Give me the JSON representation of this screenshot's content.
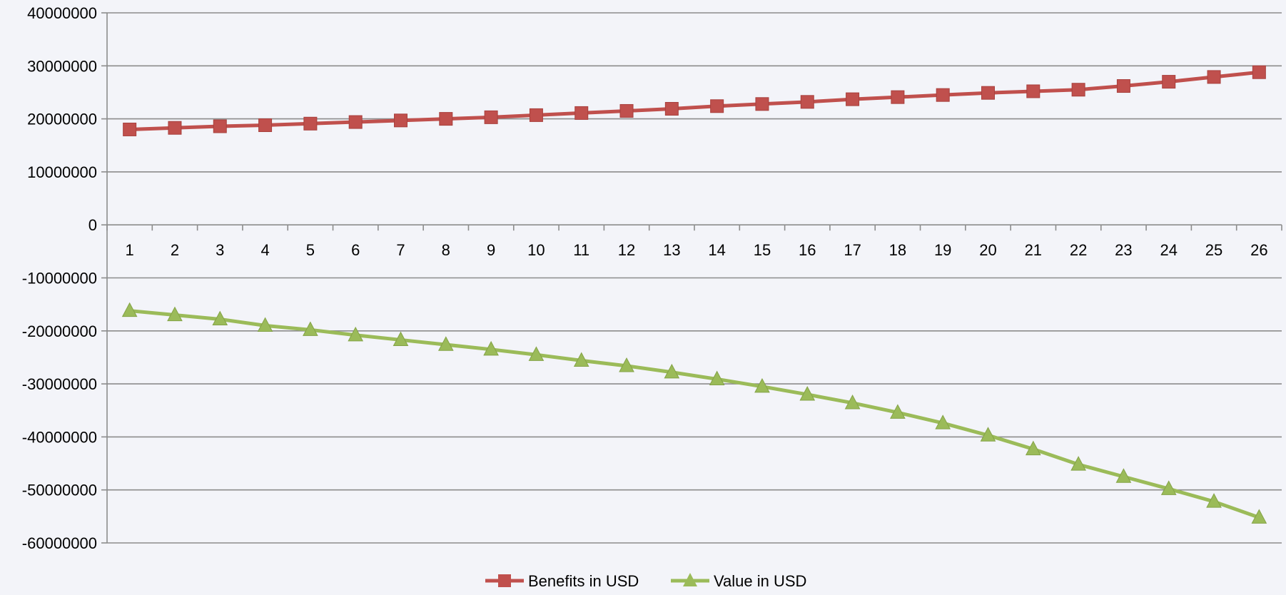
{
  "chart_data": {
    "type": "line",
    "title": "",
    "xlabel": "",
    "ylabel": "",
    "categories": [
      "1",
      "2",
      "3",
      "4",
      "5",
      "6",
      "7",
      "8",
      "9",
      "10",
      "11",
      "12",
      "13",
      "14",
      "15",
      "16",
      "17",
      "18",
      "19",
      "20",
      "21",
      "22",
      "23",
      "24",
      "25",
      "26"
    ],
    "ylim": [
      -60000000,
      40000000
    ],
    "y_ticks": [
      40000000,
      30000000,
      20000000,
      10000000,
      0,
      -10000000,
      -20000000,
      -30000000,
      -40000000,
      -50000000,
      -60000000
    ],
    "y_tick_labels": [
      "40000000",
      "30000000",
      "20000000",
      "10000000",
      "0",
      "-10000000",
      "-20000000",
      "-30000000",
      "-40000000",
      "-50000000",
      "-60000000"
    ],
    "grid": true,
    "legend_position": "bottom",
    "series": [
      {
        "name": "Benefits in USD",
        "color": "#c0504d",
        "marker": "square",
        "values": [
          18000000,
          18300000,
          18600000,
          18800000,
          19100000,
          19400000,
          19700000,
          20000000,
          20300000,
          20700000,
          21100000,
          21500000,
          21900000,
          22400000,
          22800000,
          23200000,
          23700000,
          24100000,
          24500000,
          24900000,
          25200000,
          25500000,
          26200000,
          27000000,
          27900000,
          28800000
        ]
      },
      {
        "name": "Value  in USD",
        "color": "#9bbb59",
        "marker": "triangle",
        "values": [
          -16200000,
          -17000000,
          -17800000,
          -19000000,
          -19800000,
          -20800000,
          -21700000,
          -22600000,
          -23500000,
          -24500000,
          -25600000,
          -26600000,
          -27800000,
          -29100000,
          -30500000,
          -32000000,
          -33600000,
          -35400000,
          -37400000,
          -39700000,
          -42300000,
          -45200000,
          -47500000,
          -49800000,
          -52200000,
          -55200000
        ]
      }
    ]
  }
}
